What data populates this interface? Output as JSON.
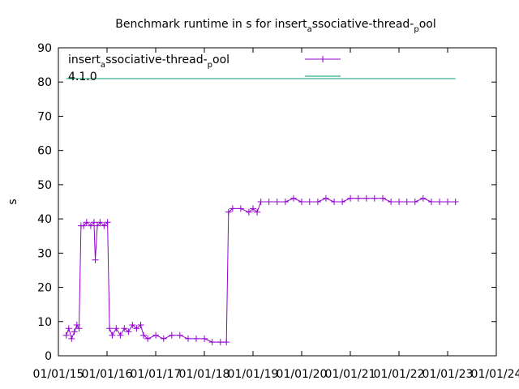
{
  "chart_data": {
    "type": "line",
    "title_parts": {
      "prefix": "Benchmark runtime in s for insert",
      "sub1": "a",
      "mid": "ssociative-thread-",
      "sub2": "p",
      "suffix": "ool"
    },
    "ylabel": "s",
    "ylim": [
      0,
      90
    ],
    "yticks": [
      "0",
      "10",
      "20",
      "30",
      "40",
      "50",
      "60",
      "70",
      "80",
      "90"
    ],
    "xlim": [
      "2015-01-01",
      "2024-01-01"
    ],
    "xticks": [
      "01/01/15",
      "01/01/16",
      "01/01/17",
      "01/01/18",
      "01/01/19",
      "01/01/20",
      "01/01/21",
      "01/01/22",
      "01/01/23",
      "01/01/24"
    ],
    "grid": false,
    "legend_position": "top-left",
    "series": [
      {
        "name_parts": {
          "prefix": "insert",
          "sub1": "a",
          "mid": "ssociative-thread-",
          "sub2": "p",
          "suffix": "ool"
        },
        "color": "#9400d3",
        "marker": "plus",
        "points": [
          [
            "2015-03-01",
            6
          ],
          [
            "2015-03-20",
            8
          ],
          [
            "2015-04-10",
            5
          ],
          [
            "2015-05-01",
            7
          ],
          [
            "2015-05-20",
            9
          ],
          [
            "2015-06-05",
            8
          ],
          [
            "2015-06-20",
            38
          ],
          [
            "2015-07-10",
            38
          ],
          [
            "2015-08-01",
            39
          ],
          [
            "2015-09-01",
            38
          ],
          [
            "2015-09-25",
            39
          ],
          [
            "2015-10-05",
            28
          ],
          [
            "2015-10-20",
            38
          ],
          [
            "2015-11-10",
            39
          ],
          [
            "2015-12-10",
            38
          ],
          [
            "2016-01-05",
            39
          ],
          [
            "2016-01-20",
            8
          ],
          [
            "2016-02-10",
            6
          ],
          [
            "2016-03-10",
            8
          ],
          [
            "2016-04-10",
            6
          ],
          [
            "2016-05-10",
            8
          ],
          [
            "2016-06-10",
            7
          ],
          [
            "2016-07-10",
            9
          ],
          [
            "2016-08-10",
            8
          ],
          [
            "2016-09-10",
            9
          ],
          [
            "2016-10-01",
            6
          ],
          [
            "2016-11-01",
            5
          ],
          [
            "2017-01-01",
            6
          ],
          [
            "2017-03-01",
            5
          ],
          [
            "2017-05-01",
            6
          ],
          [
            "2017-07-01",
            6
          ],
          [
            "2017-09-01",
            5
          ],
          [
            "2017-11-01",
            5
          ],
          [
            "2018-01-01",
            5
          ],
          [
            "2018-03-01",
            4
          ],
          [
            "2018-05-01",
            4
          ],
          [
            "2018-06-15",
            4
          ],
          [
            "2018-07-01",
            42
          ],
          [
            "2018-08-01",
            43
          ],
          [
            "2018-10-01",
            43
          ],
          [
            "2018-12-01",
            42
          ],
          [
            "2019-01-01",
            43
          ],
          [
            "2019-02-01",
            42
          ],
          [
            "2019-03-01",
            45
          ],
          [
            "2019-05-01",
            45
          ],
          [
            "2019-07-01",
            45
          ],
          [
            "2019-09-01",
            45
          ],
          [
            "2019-11-01",
            46
          ],
          [
            "2020-01-01",
            45
          ],
          [
            "2020-03-01",
            45
          ],
          [
            "2020-05-01",
            45
          ],
          [
            "2020-07-01",
            46
          ],
          [
            "2020-09-01",
            45
          ],
          [
            "2020-11-01",
            45
          ],
          [
            "2021-01-01",
            46
          ],
          [
            "2021-03-01",
            46
          ],
          [
            "2021-05-01",
            46
          ],
          [
            "2021-07-01",
            46
          ],
          [
            "2021-09-01",
            46
          ],
          [
            "2021-11-01",
            45
          ],
          [
            "2022-01-01",
            45
          ],
          [
            "2022-03-01",
            45
          ],
          [
            "2022-05-01",
            45
          ],
          [
            "2022-07-01",
            46
          ],
          [
            "2022-09-01",
            45
          ],
          [
            "2022-11-01",
            45
          ],
          [
            "2023-01-01",
            45
          ],
          [
            "2023-03-01",
            45
          ]
        ]
      },
      {
        "name": "4.1.0",
        "color": "#009e73",
        "marker": "none",
        "points": [
          [
            "2015-03-01",
            81
          ],
          [
            "2023-03-01",
            81
          ]
        ]
      }
    ]
  }
}
